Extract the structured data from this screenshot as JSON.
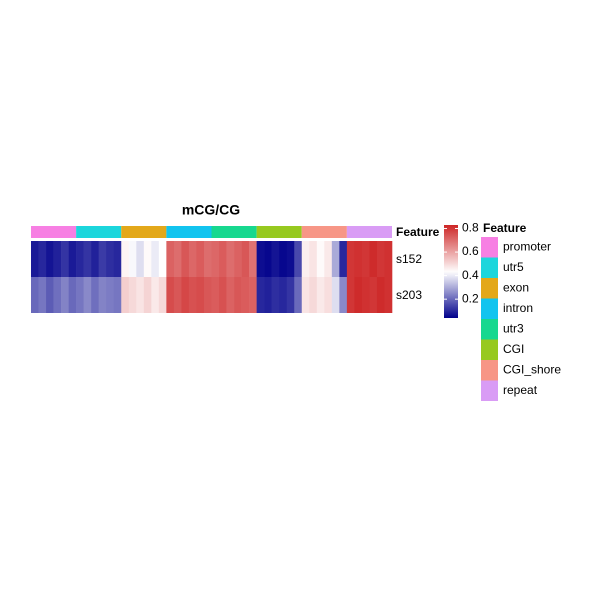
{
  "chart_data": {
    "type": "heatmap",
    "title": "mCG/CG",
    "annotation_title": "Feature",
    "features": [
      {
        "name": "promoter",
        "color": "#f77fe3"
      },
      {
        "name": "utr5",
        "color": "#1cd6dc"
      },
      {
        "name": "exon",
        "color": "#e3a81a"
      },
      {
        "name": "intron",
        "color": "#12c4ef"
      },
      {
        "name": "utr3",
        "color": "#17d88f"
      },
      {
        "name": "CGI",
        "color": "#97c91f"
      },
      {
        "name": "CGI_shore",
        "color": "#f79686"
      },
      {
        "name": "repeat",
        "color": "#d99cf5"
      }
    ],
    "series": [
      {
        "name": "s152",
        "values": [
          [
            0.08,
            0.1,
            0.07,
            0.09,
            0.12,
            0.08
          ],
          [
            0.1,
            0.12,
            0.09,
            0.13,
            0.11,
            0.1
          ],
          [
            0.45,
            0.42,
            0.38,
            0.44,
            0.4,
            0.43
          ],
          [
            0.72,
            0.7,
            0.74,
            0.71,
            0.73,
            0.7
          ],
          [
            0.71,
            0.73,
            0.7,
            0.72,
            0.74,
            0.69
          ],
          [
            0.06,
            0.05,
            0.07,
            0.05,
            0.06,
            0.15
          ],
          [
            0.46,
            0.48,
            0.44,
            0.47,
            0.3,
            0.1
          ],
          [
            0.8,
            0.81,
            0.8,
            0.82,
            0.8,
            0.81
          ]
        ]
      },
      {
        "name": "s203",
        "values": [
          [
            0.2,
            0.22,
            0.18,
            0.21,
            0.24,
            0.2
          ],
          [
            0.22,
            0.25,
            0.21,
            0.24,
            0.23,
            0.22
          ],
          [
            0.52,
            0.5,
            0.48,
            0.51,
            0.47,
            0.5
          ],
          [
            0.76,
            0.74,
            0.77,
            0.75,
            0.76,
            0.74
          ],
          [
            0.73,
            0.75,
            0.72,
            0.74,
            0.73,
            0.72
          ],
          [
            0.1,
            0.09,
            0.11,
            0.1,
            0.12,
            0.2
          ],
          [
            0.48,
            0.5,
            0.47,
            0.49,
            0.38,
            0.25
          ],
          [
            0.8,
            0.82,
            0.81,
            0.8,
            0.82,
            0.81
          ]
        ]
      }
    ],
    "colormap": [
      "#00008b",
      "#ffffff",
      "#cd2626"
    ],
    "colormap_mid": 0.43,
    "zlim": [
      0.04,
      0.83
    ],
    "zticks": [
      0.2,
      0.4,
      0.6,
      0.8
    ]
  }
}
